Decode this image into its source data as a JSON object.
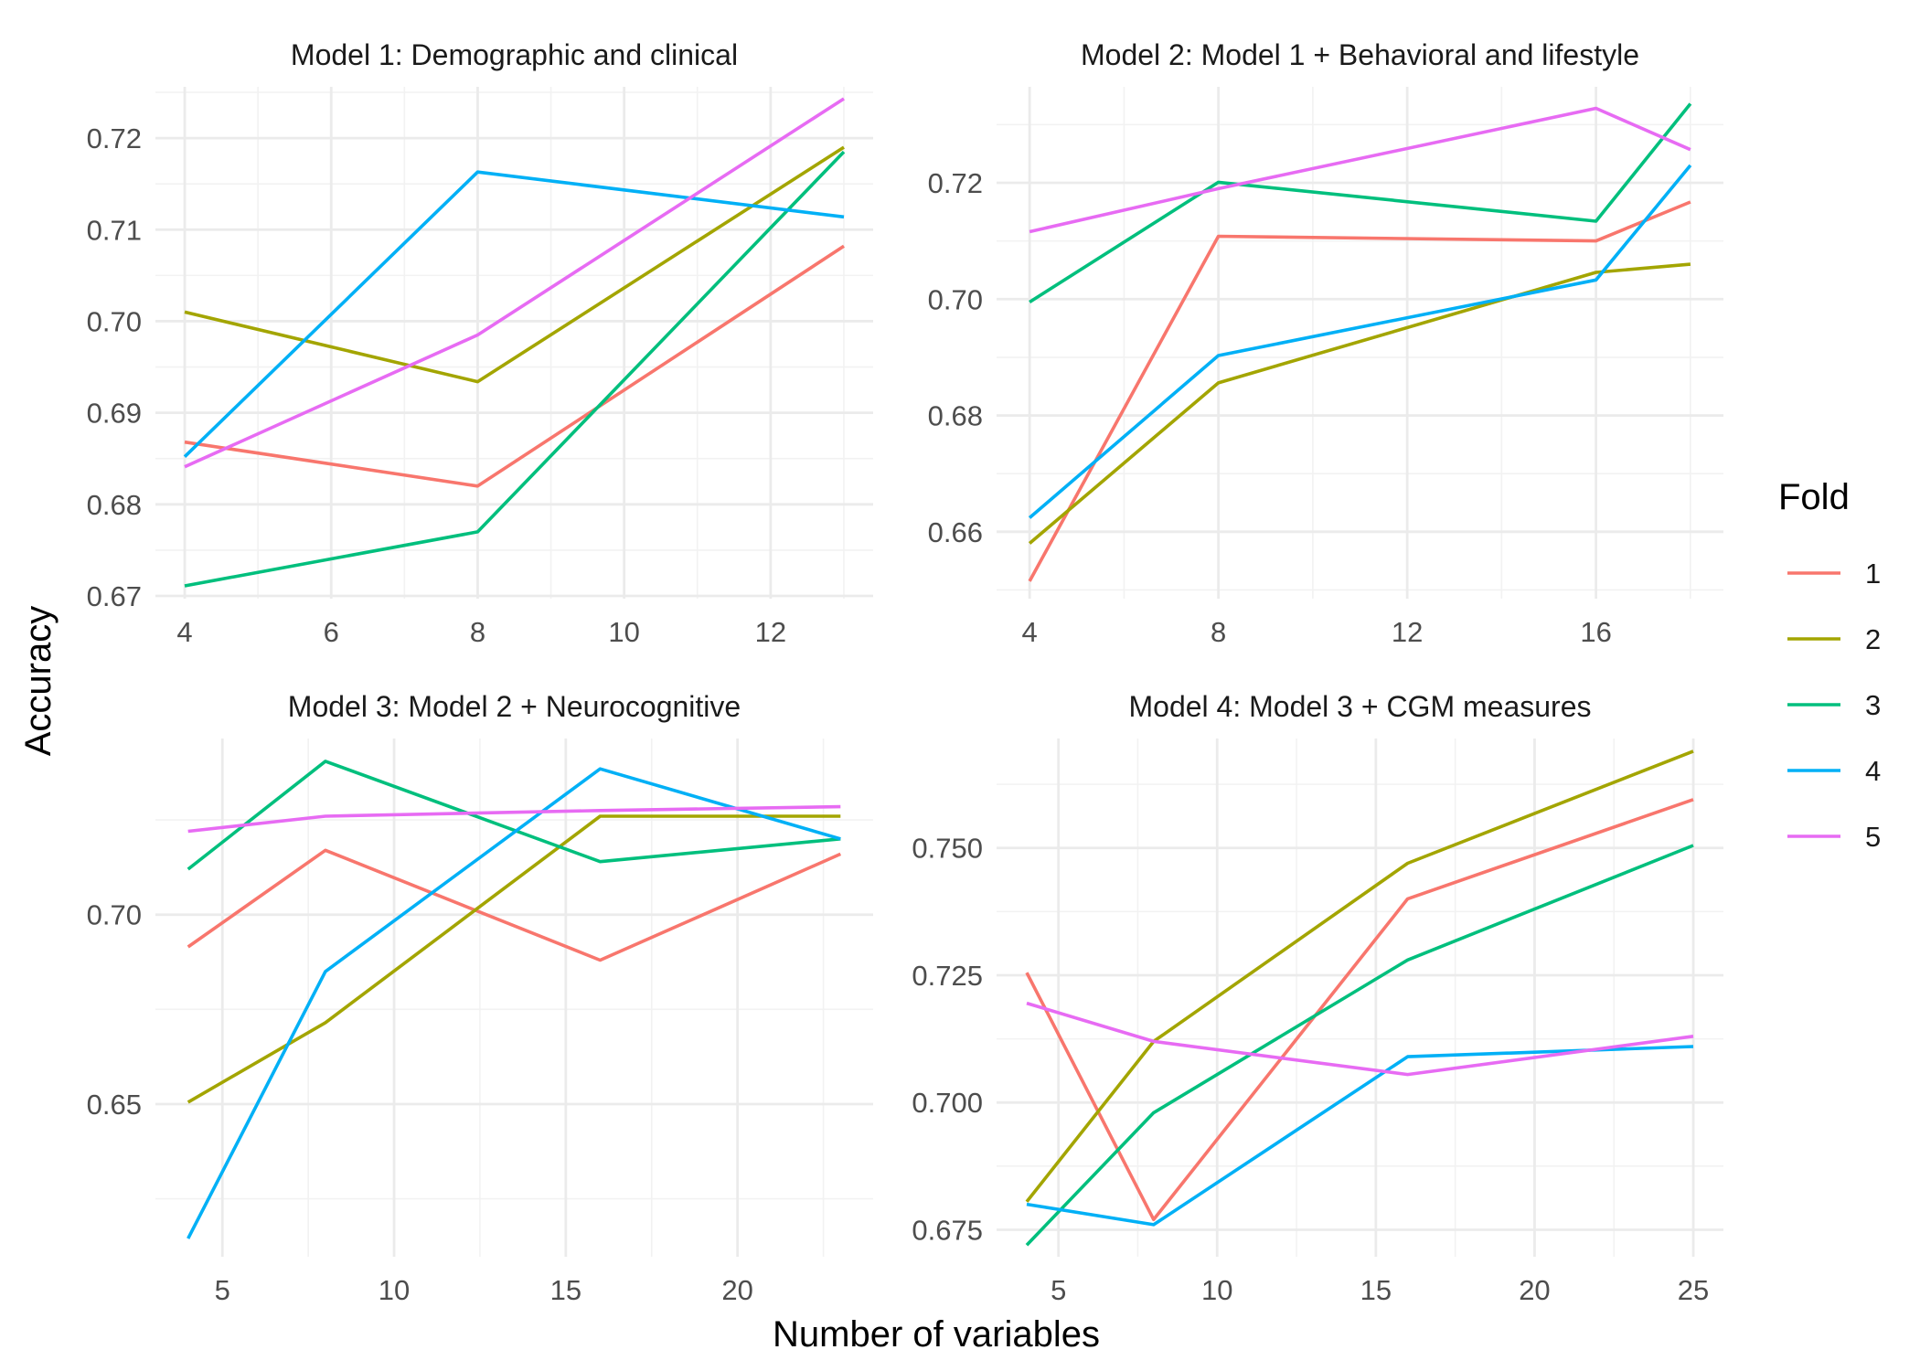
{
  "chart_data": {
    "type": "line",
    "xlabel": "Number of variables",
    "ylabel": "Accuracy",
    "legend": {
      "title": "Fold",
      "placement": "right",
      "entries": [
        {
          "name": "1",
          "color": "#F8766D"
        },
        {
          "name": "2",
          "color": "#A3A500"
        },
        {
          "name": "3",
          "color": "#00BF7D"
        },
        {
          "name": "4",
          "color": "#00B0F6"
        },
        {
          "name": "5",
          "color": "#E76BF3"
        }
      ]
    },
    "grid": true,
    "panels": [
      {
        "title": "Model 1: Demographic and clinical",
        "xlim": [
          3.6,
          13.4
        ],
        "ylim": [
          0.6697,
          0.7256
        ],
        "xticks": [
          4,
          6,
          8,
          10,
          12
        ],
        "xtick_labels": [
          "4",
          "6",
          "8",
          "10",
          "12"
        ],
        "yticks": [
          0.67,
          0.68,
          0.69,
          0.7,
          0.71,
          0.72
        ],
        "ytick_labels": [
          "0.67",
          "0.68",
          "0.69",
          "0.70",
          "0.71",
          "0.72"
        ],
        "series": [
          {
            "name": "1",
            "x": [
              4,
              8,
              13
            ],
            "y": [
              0.6868,
              0.682,
              0.7082
            ]
          },
          {
            "name": "2",
            "x": [
              4,
              8,
              13
            ],
            "y": [
              0.701,
              0.6934,
              0.719
            ]
          },
          {
            "name": "3",
            "x": [
              4,
              8,
              13
            ],
            "y": [
              0.6711,
              0.677,
              0.7185
            ]
          },
          {
            "name": "4",
            "x": [
              4,
              8,
              13
            ],
            "y": [
              0.6852,
              0.7163,
              0.7114
            ]
          },
          {
            "name": "5",
            "x": [
              4,
              8,
              13
            ],
            "y": [
              0.6841,
              0.6985,
              0.7243
            ]
          }
        ]
      },
      {
        "title": "Model 2: Model 1 + Behavioral and lifestyle",
        "xlim": [
          3.3,
          18.7
        ],
        "ylim": [
          0.6485,
          0.7365
        ],
        "xticks": [
          4,
          8,
          12,
          16
        ],
        "xtick_labels": [
          "4",
          "8",
          "12",
          "16"
        ],
        "yticks": [
          0.66,
          0.68,
          0.7,
          0.72
        ],
        "ytick_labels": [
          "0.66",
          "0.68",
          "0.70",
          "0.72"
        ],
        "series": [
          {
            "name": "1",
            "x": [
              4,
              8,
              16,
              18
            ],
            "y": [
              0.6515,
              0.7108,
              0.71,
              0.7167
            ]
          },
          {
            "name": "2",
            "x": [
              4,
              8,
              16,
              18
            ],
            "y": [
              0.658,
              0.6856,
              0.7046,
              0.706
            ]
          },
          {
            "name": "3",
            "x": [
              4,
              8,
              16,
              18
            ],
            "y": [
              0.6995,
              0.7201,
              0.7134,
              0.7336
            ]
          },
          {
            "name": "4",
            "x": [
              4,
              8,
              16,
              18
            ],
            "y": [
              0.6624,
              0.6903,
              0.7033,
              0.723
            ]
          },
          {
            "name": "5",
            "x": [
              4,
              8,
              16,
              18
            ],
            "y": [
              0.7116,
              0.719,
              0.7328,
              0.7257
            ]
          }
        ]
      },
      {
        "title": "Model 3: Model 2 + Neurocognitive",
        "xlim": [
          3.05,
          23.95
        ],
        "ylim": [
          0.6097,
          0.7465
        ],
        "xticks": [
          5,
          10,
          15,
          20
        ],
        "xtick_labels": [
          "5",
          "10",
          "15",
          "20"
        ],
        "yticks": [
          0.65,
          0.7
        ],
        "ytick_labels": [
          "0.65",
          "0.70"
        ],
        "series": [
          {
            "name": "1",
            "x": [
              4,
              8,
              16,
              23
            ],
            "y": [
              0.6915,
              0.717,
              0.688,
              0.716
            ]
          },
          {
            "name": "2",
            "x": [
              4,
              8,
              16,
              23
            ],
            "y": [
              0.6505,
              0.6715,
              0.726,
              0.726
            ]
          },
          {
            "name": "3",
            "x": [
              4,
              8,
              16,
              23
            ],
            "y": [
              0.712,
              0.7405,
              0.714,
              0.72
            ]
          },
          {
            "name": "4",
            "x": [
              4,
              8,
              16,
              23
            ],
            "y": [
              0.6145,
              0.685,
              0.7385,
              0.72
            ]
          },
          {
            "name": "5",
            "x": [
              4,
              8,
              16,
              23
            ],
            "y": [
              0.722,
              0.726,
              0.7275,
              0.7285
            ]
          }
        ]
      },
      {
        "title": "Model 4: Model 3 + CGM measures",
        "xlim": [
          3.05,
          25.95
        ],
        "ylim": [
          0.6697,
          0.7715
        ],
        "xticks": [
          5,
          10,
          15,
          20,
          25
        ],
        "xtick_labels": [
          "5",
          "10",
          "15",
          "20",
          "25"
        ],
        "yticks": [
          0.675,
          0.7,
          0.725,
          0.75
        ],
        "ytick_labels": [
          "0.675",
          "0.700",
          "0.725",
          "0.750"
        ],
        "series": [
          {
            "name": "1",
            "x": [
              4,
              8,
              16,
              25
            ],
            "y": [
              0.7255,
              0.677,
              0.74,
              0.7595
            ]
          },
          {
            "name": "2",
            "x": [
              4,
              8,
              16,
              25
            ],
            "y": [
              0.6805,
              0.712,
              0.747,
              0.769
            ]
          },
          {
            "name": "3",
            "x": [
              4,
              8,
              16,
              25
            ],
            "y": [
              0.672,
              0.698,
              0.728,
              0.7505
            ]
          },
          {
            "name": "4",
            "x": [
              4,
              8,
              16,
              25
            ],
            "y": [
              0.68,
              0.676,
              0.709,
              0.711
            ]
          },
          {
            "name": "5",
            "x": [
              4,
              8,
              16,
              25
            ],
            "y": [
              0.7195,
              0.712,
              0.7055,
              0.713
            ]
          }
        ]
      }
    ]
  }
}
